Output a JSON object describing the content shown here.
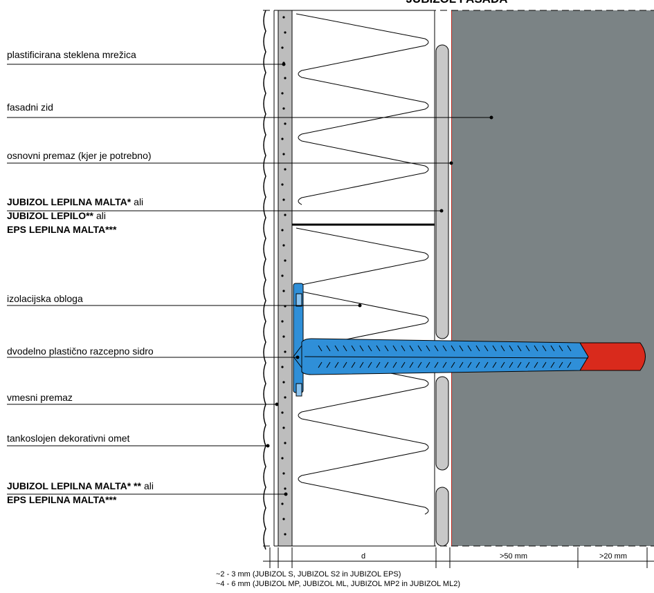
{
  "title": "JUBIZOL FASADA",
  "labels": [
    {
      "lines": [
        {
          "regular": "plastificirana steklena mrežica"
        }
      ]
    },
    {
      "lines": [
        {
          "regular": "fasadni zid"
        }
      ]
    },
    {
      "lines": [
        {
          "regular": "osnovni premaz (kjer je potrebno)"
        }
      ]
    },
    {
      "lines": [
        {
          "bold": "JUBIZOL LEPILNA MALTA*",
          "regular": "ali"
        },
        {
          "bold": "JUBIZOL LEPILO**",
          "regular": "ali"
        },
        {
          "bold": "EPS LEPILNA MALTA***"
        }
      ]
    },
    {
      "lines": [
        {
          "regular": "izolacijska obloga"
        }
      ]
    },
    {
      "lines": [
        {
          "regular": "dvodelno plastično razcepno sidro"
        }
      ]
    },
    {
      "lines": [
        {
          "regular": "vmesni premaz"
        }
      ]
    },
    {
      "lines": [
        {
          "regular": "tankoslojen dekorativni omet"
        }
      ]
    },
    {
      "lines": [
        {
          "bold": "JUBIZOL LEPILNA MALTA* **",
          "regular": "ali"
        },
        {
          "bold": "EPS LEPILNA MALTA***"
        }
      ]
    }
  ],
  "dimensions": [
    "d",
    ">50 mm",
    ">20 mm"
  ],
  "notes": [
    "~2 - 3 mm (JUBIZOL S, JUBIZOL S2 in JUBIZOL EPS)",
    "~4 - 6 mm (JUBIZOL MP, JUBIZOL ML, JUBIZOL MP2 in JUBIZOL ML2)"
  ]
}
